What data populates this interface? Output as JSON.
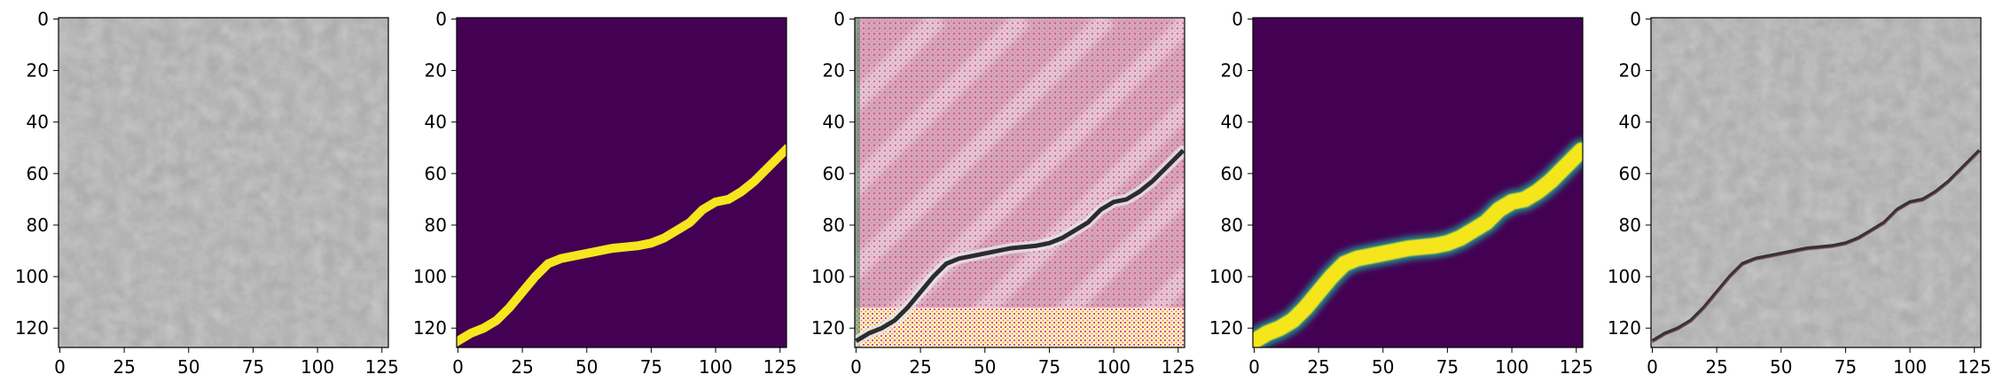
{
  "figure": {
    "panel_count": 5,
    "x_ticks": [
      "0",
      "25",
      "50",
      "75",
      "100",
      "125"
    ],
    "y_ticks": [
      "0",
      "20",
      "40",
      "60",
      "80",
      "100",
      "120"
    ],
    "x_tick_values": [
      0,
      25,
      50,
      75,
      100,
      125
    ],
    "y_tick_values": [
      0,
      20,
      40,
      60,
      80,
      100,
      120
    ],
    "image_extent": [
      -0.5,
      127.5
    ],
    "panels": [
      {
        "kind": "photo",
        "description": "concrete-texture-no-crack"
      },
      {
        "kind": "mask",
        "description": "binary-crack-mask"
      },
      {
        "kind": "generated",
        "description": "generated-cracked-texture-pink"
      },
      {
        "kind": "mask",
        "description": "predicted-crack-mask-blurred"
      },
      {
        "kind": "photo",
        "description": "concrete-texture-with-crack"
      }
    ],
    "crack_path_data_coords": [
      [
        0,
        125
      ],
      [
        5,
        122
      ],
      [
        10,
        120
      ],
      [
        15,
        117
      ],
      [
        20,
        112
      ],
      [
        25,
        106
      ],
      [
        30,
        100
      ],
      [
        35,
        95
      ],
      [
        40,
        93
      ],
      [
        50,
        91
      ],
      [
        60,
        89
      ],
      [
        70,
        88
      ],
      [
        75,
        87
      ],
      [
        80,
        85
      ],
      [
        85,
        82
      ],
      [
        90,
        79
      ],
      [
        95,
        74
      ],
      [
        100,
        71
      ],
      [
        105,
        70
      ],
      [
        110,
        67
      ],
      [
        115,
        63
      ],
      [
        120,
        58
      ],
      [
        125,
        53
      ],
      [
        127,
        51
      ]
    ],
    "colors": {
      "mask_background": "#440154",
      "mask_foreground": "#f5e61e",
      "concrete": "#b8b8b8",
      "pink": "#d9a3b8"
    }
  }
}
